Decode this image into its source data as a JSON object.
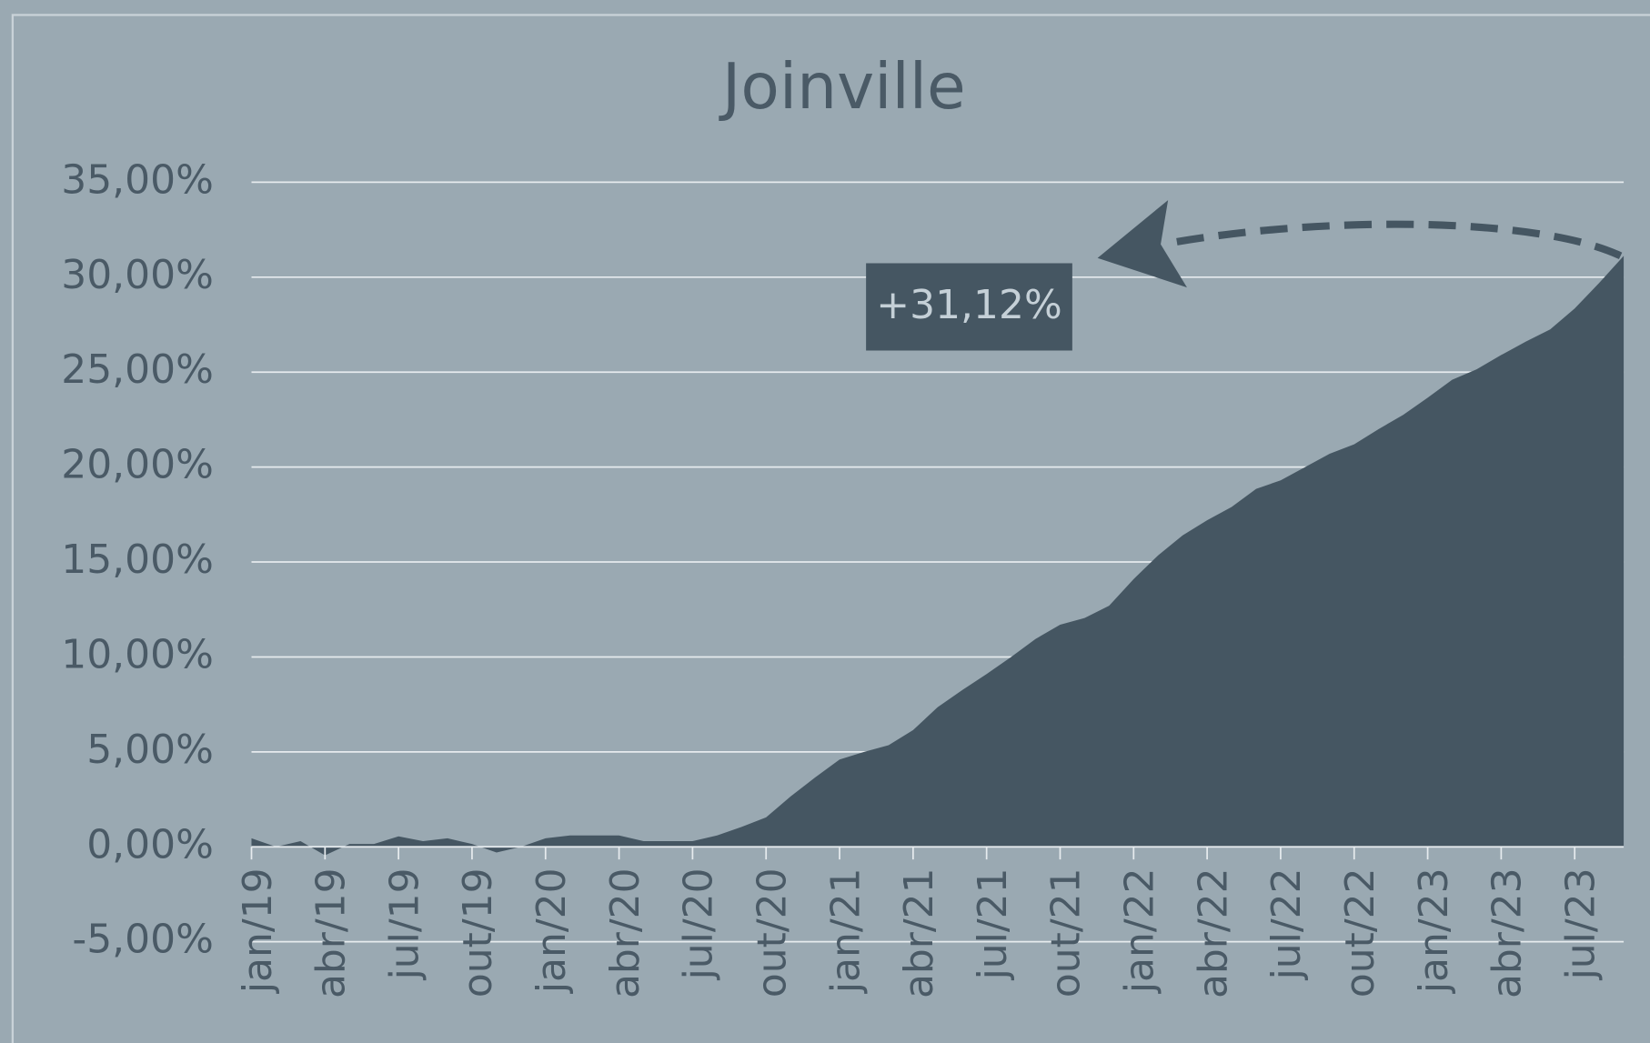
{
  "chart_data": {
    "type": "area",
    "title": "Joinville",
    "categories": [
      "jan/19",
      null,
      null,
      "abr/19",
      null,
      null,
      "jul/19",
      null,
      null,
      "out/19",
      null,
      null,
      "jan/20",
      null,
      null,
      "abr/20",
      null,
      null,
      "jul/20",
      null,
      null,
      "out/20",
      null,
      null,
      "jan/21",
      null,
      null,
      "abr/21",
      null,
      null,
      "jul/21",
      null,
      null,
      "out/21",
      null,
      null,
      "jan/22",
      null,
      null,
      "abr/22",
      null,
      null,
      "jul/22",
      null,
      null,
      "out/22",
      null,
      null,
      "jan/23",
      null,
      null,
      "abr/23",
      null,
      null,
      "jul/23",
      null,
      null
    ],
    "series": [
      {
        "name": "Joinville",
        "color": "#455662",
        "values": [
          0.45,
          0,
          0.3,
          -0.45,
          0.15,
          0.15,
          0.55,
          0.3,
          0.45,
          0.15,
          -0.3,
          0,
          0.45,
          0.6,
          0.6,
          0.6,
          0.3,
          0.3,
          0.3,
          0.6,
          1.05,
          1.55,
          2.65,
          3.65,
          4.6,
          5.0,
          5.35,
          6.15,
          7.35,
          8.25,
          9.1,
          10.0,
          10.95,
          11.7,
          12.05,
          12.7,
          14.1,
          15.35,
          16.4,
          17.2,
          17.9,
          18.85,
          19.3,
          20.0,
          20.7,
          21.2,
          22.0,
          22.75,
          23.65,
          24.6,
          25.15,
          25.9,
          26.6,
          27.25,
          28.35,
          29.7,
          31.12
        ]
      }
    ],
    "ylim": [
      -5,
      35
    ],
    "yticks": [
      {
        "value": -5,
        "label": "-5,00%"
      },
      {
        "value": 0,
        "label": "0,00%"
      },
      {
        "value": 5,
        "label": "5,00%"
      },
      {
        "value": 10,
        "label": "10,00%"
      },
      {
        "value": 15,
        "label": "15,00%"
      },
      {
        "value": 20,
        "label": "20,00%"
      },
      {
        "value": 25,
        "label": "25,00%"
      },
      {
        "value": 30,
        "label": "30,00%"
      },
      {
        "value": 35,
        "label": "35,00%"
      }
    ],
    "grid": true,
    "annotation": "+31,12%"
  }
}
